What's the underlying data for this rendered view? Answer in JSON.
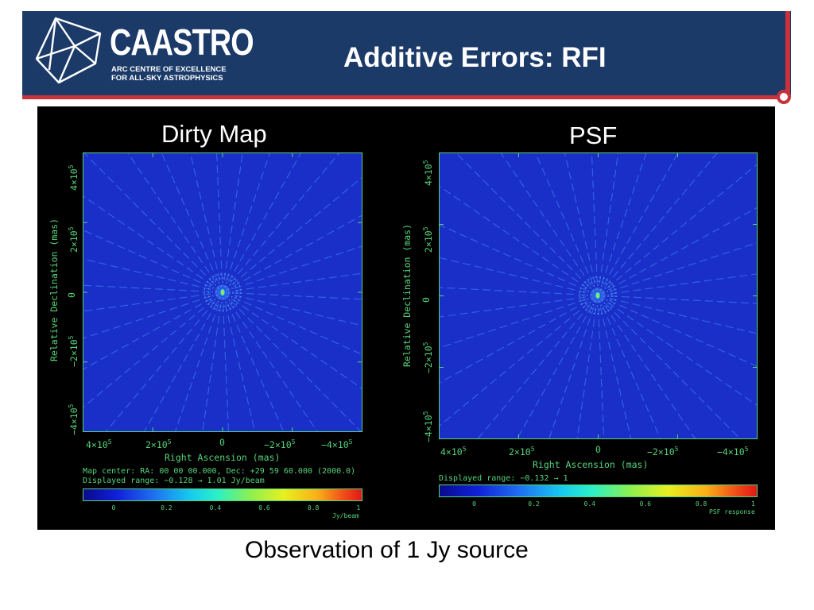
{
  "header": {
    "logo_name": "CAASTRO",
    "logo_sub_line1": "ARC CENTRE OF EXCELLENCE",
    "logo_sub_line2": "FOR ALL-SKY ASTROPHYSICS",
    "title": "Additive Errors: RFI",
    "colors": {
      "banner": "#1b3a68",
      "accent": "#c8323c"
    }
  },
  "left": {
    "label": "Dirty Map",
    "ylabel": "Relative Declination   (mas)",
    "xlabel": "Right Ascension   (mas)",
    "map_center": "Map center:  RA: 00 00 00.000,   Dec: +29 59 60.000 (2000.0)",
    "range": "Displayed range: −0.128 → 1.01 Jy/beam",
    "cbar_ticks": [
      "0",
      "0.2",
      "0.4",
      "0.6",
      "0.8",
      "1"
    ],
    "cbar_unit": "Jy/beam"
  },
  "right": {
    "label": "PSF",
    "ylabel": "Relative Declination   (mas)",
    "xlabel": "Right Ascension   (mas)",
    "range": "Displayed range: −0.132 → 1",
    "cbar_ticks": [
      "0",
      "0.2",
      "0.4",
      "0.6",
      "0.8",
      "1"
    ],
    "cbar_unit": "PSF response"
  },
  "axis_ticks": {
    "x": [
      "4×10",
      "2×10",
      "0",
      "−2×10",
      "−4×10"
    ],
    "y": [
      "4×10",
      "2×10",
      "0",
      "−2×10",
      "−4×10"
    ],
    "exponent": "5"
  },
  "caption": "Observation of 1 Jy source"
}
